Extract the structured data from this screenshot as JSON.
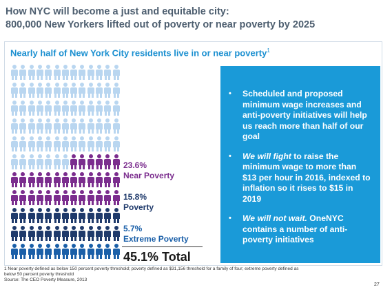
{
  "title": {
    "line1": "How NYC will become a just and equitable city:",
    "line2": "800,000 New Yorkers lifted out of poverty or near poverty by 2025"
  },
  "panel": {
    "heading": "Nearly half of New York City residents live in or near poverty",
    "heading_sup": "1"
  },
  "stats": {
    "near_poverty": {
      "percent": "23.6%",
      "label": "Near Poverty"
    },
    "poverty": {
      "percent": "15.8%",
      "label": "Poverty"
    },
    "extreme_poverty": {
      "percent": "5.7%",
      "label": "Extreme Poverty"
    },
    "total": "45.1% Total"
  },
  "colors": {
    "light": "#b9d6f0",
    "near": "#7b2d8e",
    "poverty": "#1f3a6b",
    "extreme": "#1a5fa8",
    "callout": "#1a9ad8"
  },
  "icon_grid": {
    "columns": 13,
    "rows": [
      {
        "light": 13
      },
      {
        "light": 13
      },
      {
        "light": 13
      },
      {
        "light": 13
      },
      {
        "light": 13
      },
      {
        "light": 7,
        "near": 6
      },
      {
        "near": 13
      },
      {
        "near": 13
      },
      {
        "poverty": 13
      },
      {
        "poverty": 13
      },
      {
        "extreme": 13
      }
    ]
  },
  "callout": {
    "bullet_char": "•",
    "items": [
      {
        "emph": "",
        "text": "Scheduled and proposed minimum wage increases and anti-poverty initiatives will help us reach more than half of our goal"
      },
      {
        "emph": "We will fight",
        "text": " to raise the minimum wage to more than $13 per hour in 2016, indexed to inflation so it rises to $15 in 2019"
      },
      {
        "emph": "We will not wait.",
        "text": " OneNYC contains a number of anti-poverty initiatives"
      }
    ]
  },
  "footnote": {
    "line1": "1 Near poverty defined as below 150 percent poverty threshold; poverty defined as $31,156 threshold for a family of four; extreme poverty defined as",
    "line2": "below 50 percent poverty threshold",
    "source": "Source: The CEO Poverty Measure, 2013"
  },
  "page_number": "27"
}
